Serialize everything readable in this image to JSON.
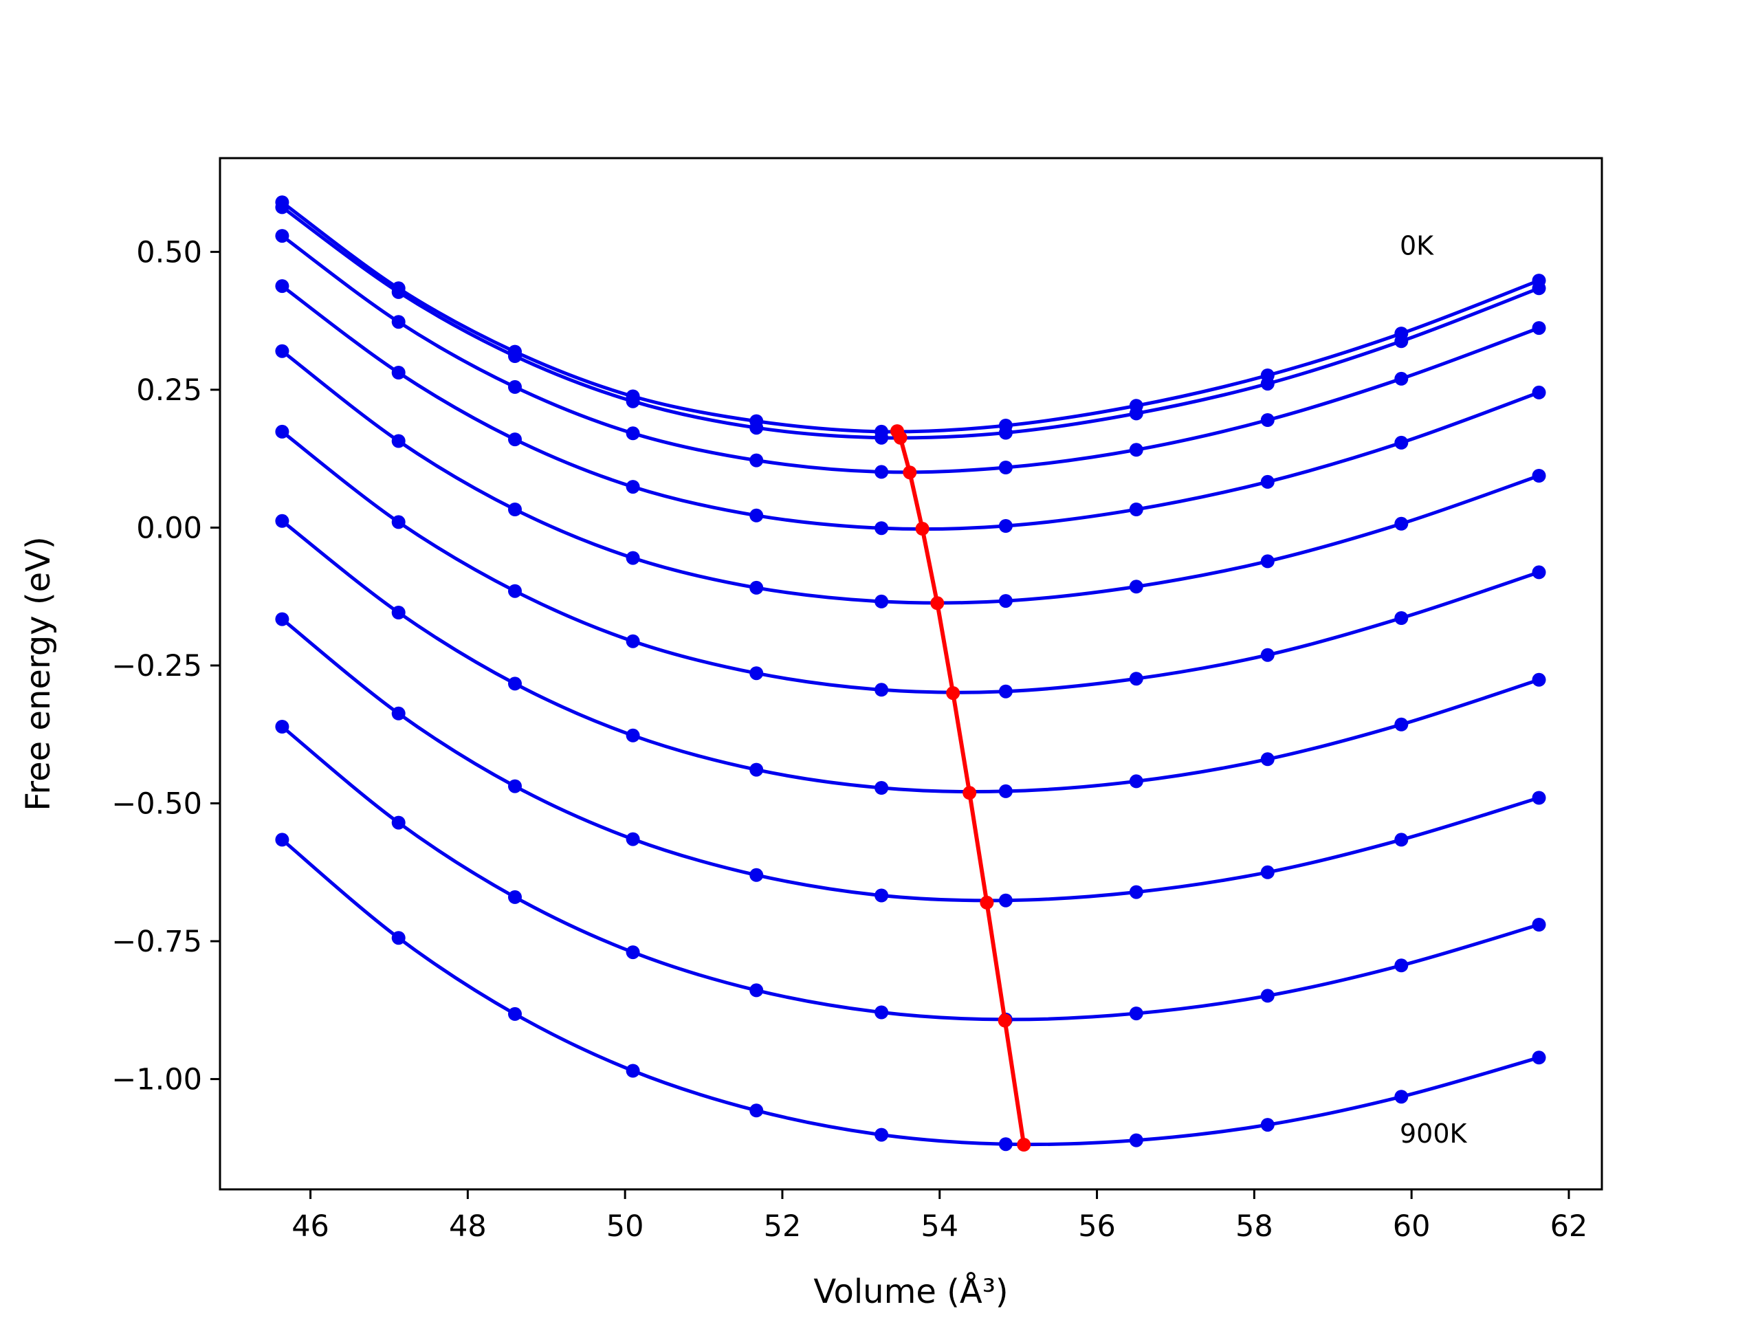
{
  "chart_data": {
    "type": "line",
    "xlabel": "Volume (Å³)",
    "ylabel": "Free energy (eV)",
    "xlim": [
      44.85,
      62.42
    ],
    "ylim": [
      -1.2,
      0.67
    ],
    "xticks": [
      46,
      48,
      50,
      52,
      54,
      56,
      58,
      60,
      62
    ],
    "yticks": [
      0.5,
      0.25,
      0.0,
      -0.25,
      -0.5,
      -0.75,
      -1.0
    ],
    "xtick_labels": [
      "46",
      "48",
      "50",
      "52",
      "54",
      "56",
      "58",
      "60",
      "62"
    ],
    "ytick_labels": [
      "0.50",
      "0.25",
      "0.00",
      "−0.25",
      "−0.50",
      "−0.75",
      "−1.00"
    ],
    "grid": false,
    "legend": "none",
    "annotations": [
      {
        "text": "0K",
        "x": 59.85,
        "y": 0.51
      },
      {
        "text": "900K",
        "x": 59.85,
        "y": -1.1
      }
    ],
    "x": [
      45.64,
      47.12,
      48.6,
      50.1,
      51.67,
      53.26,
      54.84,
      56.5,
      58.17,
      59.87,
      61.62
    ],
    "series": [
      {
        "color": "#0000ee",
        "values": [
          0.59,
          0.434,
          0.319,
          0.238,
          0.193,
          0.174,
          0.185,
          0.221,
          0.276,
          0.352,
          0.448
        ]
      },
      {
        "color": "#0000ee",
        "values": [
          0.581,
          0.427,
          0.311,
          0.229,
          0.181,
          0.163,
          0.172,
          0.207,
          0.261,
          0.338,
          0.434
        ]
      },
      {
        "color": "#0000ee",
        "values": [
          0.529,
          0.373,
          0.255,
          0.171,
          0.122,
          0.101,
          0.109,
          0.141,
          0.195,
          0.27,
          0.362
        ]
      },
      {
        "color": "#0000ee",
        "values": [
          0.438,
          0.281,
          0.16,
          0.074,
          0.022,
          -0.001,
          0.003,
          0.033,
          0.083,
          0.154,
          0.245
        ]
      },
      {
        "color": "#0000ee",
        "values": [
          0.32,
          0.157,
          0.033,
          -0.055,
          -0.109,
          -0.134,
          -0.133,
          -0.107,
          -0.061,
          0.007,
          0.094
        ]
      },
      {
        "color": "#0000ee",
        "values": [
          0.174,
          0.01,
          -0.115,
          -0.206,
          -0.264,
          -0.294,
          -0.297,
          -0.274,
          -0.231,
          -0.164,
          -0.081
        ]
      },
      {
        "color": "#0000ee",
        "values": [
          0.012,
          -0.154,
          -0.283,
          -0.377,
          -0.439,
          -0.472,
          -0.478,
          -0.46,
          -0.42,
          -0.357,
          -0.276
        ]
      },
      {
        "color": "#0000ee",
        "values": [
          -0.166,
          -0.337,
          -0.469,
          -0.565,
          -0.63,
          -0.667,
          -0.676,
          -0.661,
          -0.625,
          -0.566,
          -0.49
        ]
      },
      {
        "color": "#0000ee",
        "values": [
          -0.361,
          -0.535,
          -0.67,
          -0.77,
          -0.839,
          -0.879,
          -0.892,
          -0.881,
          -0.849,
          -0.794,
          -0.72
        ]
      },
      {
        "color": "#0000ee",
        "values": [
          -0.566,
          -0.744,
          -0.882,
          -0.985,
          -1.057,
          -1.101,
          -1.118,
          -1.111,
          -1.083,
          -1.032,
          -0.961
        ]
      }
    ],
    "minima_series": {
      "color": "#ff0000",
      "x": [
        53.46,
        53.5,
        53.62,
        53.78,
        53.97,
        54.17,
        54.38,
        54.6,
        54.83,
        55.07
      ],
      "y": [
        0.175,
        0.163,
        0.1,
        -0.002,
        -0.137,
        -0.3,
        -0.481,
        -0.68,
        -0.894,
        -1.119
      ]
    }
  }
}
